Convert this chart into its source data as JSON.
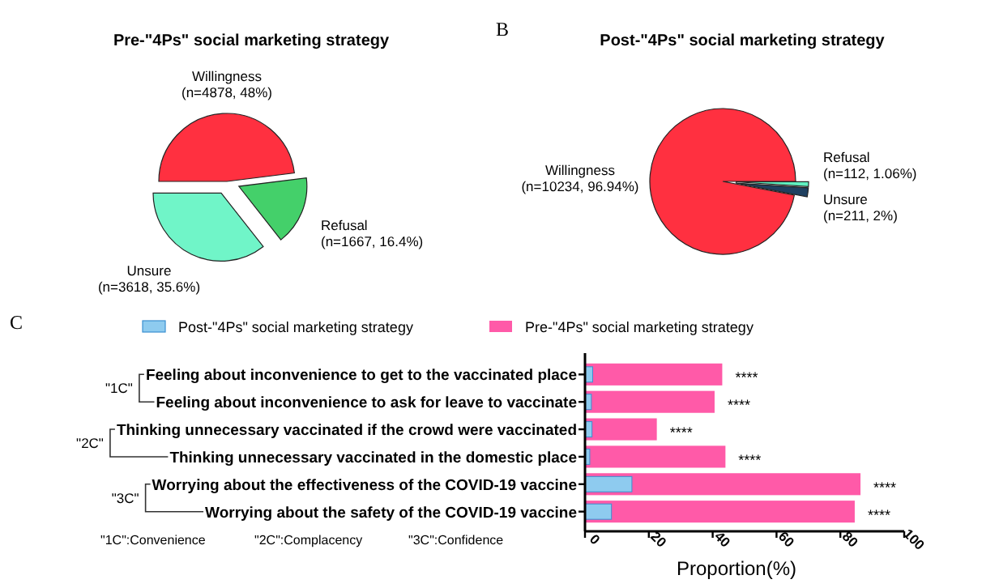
{
  "chart_data": [
    {
      "type": "pie",
      "title": "Pre-\"4Ps\" social marketing strategy",
      "categories": [
        "Willingness",
        "Refusal",
        "Unsure"
      ],
      "values": [
        48,
        16.4,
        35.6
      ],
      "value_labels": [
        "(n=4878, 48%)",
        "(n=1667, 16.4%)",
        "(n=3618, 35.6%)"
      ],
      "colors": [
        "#ff3040",
        "#44d06a",
        "#70f5c8"
      ],
      "legend": false
    },
    {
      "type": "pie",
      "title": "Post-\"4Ps\" social marketing strategy",
      "categories": [
        "Willingness",
        "Refusal",
        "Unsure"
      ],
      "values": [
        96.94,
        1.06,
        2
      ],
      "value_labels": [
        "(n=10234, 96.94%)",
        "(n=112, 1.06%)",
        "(n=211, 2%)"
      ],
      "colors": [
        "#ff3040",
        "#60f0c0",
        "#1f4060"
      ],
      "annotations": [
        "B"
      ],
      "legend": false
    },
    {
      "type": "bar",
      "orientation": "horizontal",
      "xlabel": "Proportion(%)",
      "categories": [
        "Feeling about inconvenience to get to the vaccinated place",
        "Feeling about inconvenience to ask for leave to vaccinate",
        "Thinking unnecessary vaccinated if the crowd were vaccinated",
        "Thinking unnecessary vaccinated in the domestic place",
        "Worrying about the effectiveness of the COVID-19 vaccine",
        "Worrying about the safety of the COVID-19 vaccine"
      ],
      "series": [
        {
          "name": "Post-\"4Ps\" social marketing strategy",
          "color": "#8ecbef",
          "values": [
            2.4,
            2,
            2.2,
            1.5,
            14.7,
            8.3
          ]
        },
        {
          "name": "Pre-\"4Ps\" social marketing strategy",
          "color": "#ff5aa8",
          "values": [
            43,
            40.6,
            22.5,
            44,
            86.3,
            84.5
          ]
        }
      ],
      "xlim": [
        0,
        100
      ],
      "xticks": [
        0,
        20,
        40,
        60,
        80,
        100
      ],
      "legend": "top",
      "grid": false,
      "annotations": [
        "C",
        "\"1C\"",
        "\"2C\"",
        "\"3C\"",
        "\"1C\":Convenience",
        "\"2C\":Complacency",
        "\"3C\":Confidence",
        {
          "text": "****",
          "x": 43,
          "y": "Feeling about inconvenience to get to the vaccinated place"
        },
        {
          "text": "****",
          "x": 40.6,
          "y": "Feeling about inconvenience to ask for leave to vaccinate"
        },
        {
          "text": "****",
          "x": 22.5,
          "y": "Thinking unnecessary vaccinated if the crowd were vaccinated"
        },
        {
          "text": "****",
          "x": 44,
          "y": "Thinking unnecessary vaccinated in the domestic place"
        },
        {
          "text": "****",
          "x": 86.3,
          "y": "Worrying about the effectiveness of the COVID-19 vaccine"
        },
        {
          "text": "****",
          "x": 84.5,
          "y": "Worrying about the safety of the COVID-19 vaccine"
        }
      ]
    }
  ]
}
